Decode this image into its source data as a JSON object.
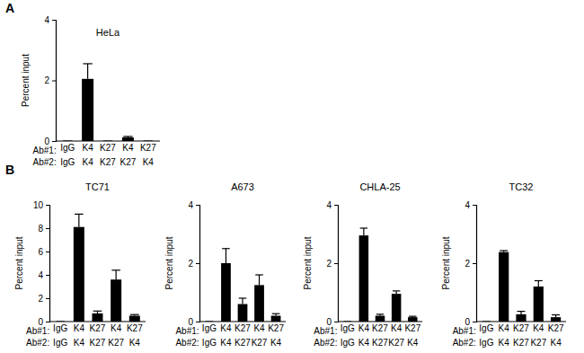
{
  "chart_data": [
    {
      "type": "bar",
      "panel_label": "A",
      "title": "HeLa",
      "y_label": "Percent input",
      "category_row_labels": [
        "Ab#1:",
        "Ab#2:"
      ],
      "categories": [
        "IgG",
        "K4",
        "K27",
        "K4",
        "K27"
      ],
      "categories_2": [
        "IgG",
        "K4",
        "K27",
        "K27",
        "K4"
      ],
      "values": [
        0,
        2.05,
        0,
        0.12,
        0
      ],
      "errors": [
        0,
        0.5,
        0,
        0.03,
        0
      ],
      "color": "#000000",
      "ylim": [
        0,
        4
      ],
      "yticks": [
        0,
        2,
        4
      ]
    },
    {
      "type": "bar",
      "panel_label": "B",
      "title": "TC71",
      "y_label": "Percent input",
      "category_row_labels": [
        "Ab#1:",
        "Ab#2:"
      ],
      "categories": [
        "IgG",
        "K4",
        "K27",
        "K4",
        "K27"
      ],
      "categories_2": [
        "IgG",
        "K4",
        "K27",
        "K27",
        "K4"
      ],
      "values": [
        0,
        8.1,
        0.7,
        3.6,
        0.5
      ],
      "errors": [
        0,
        1.1,
        0.2,
        0.8,
        0.1
      ],
      "color": "#000000",
      "ylim": [
        0,
        10
      ],
      "yticks": [
        0,
        2,
        4,
        6,
        8,
        10
      ]
    },
    {
      "type": "bar",
      "title": "A673",
      "y_label": "Percent input",
      "category_row_labels": [
        "Ab#1:",
        "Ab#2:"
      ],
      "categories": [
        "IgG",
        "K4",
        "K27",
        "K4",
        "K27"
      ],
      "categories_2": [
        "IgG",
        "K4",
        "K27",
        "K27",
        "K4"
      ],
      "values": [
        0,
        2.0,
        0.6,
        1.25,
        0.2
      ],
      "errors": [
        0,
        0.5,
        0.2,
        0.35,
        0.07
      ],
      "color": "#000000",
      "ylim": [
        0,
        4
      ],
      "yticks": [
        0,
        2,
        4
      ]
    },
    {
      "type": "bar",
      "title": "CHLA-25",
      "y_label": "Percent input",
      "category_row_labels": [
        "Ab#1:",
        "Ab#2:"
      ],
      "categories": [
        "IgG",
        "K4",
        "K27",
        "K4",
        "K27"
      ],
      "categories_2": [
        "IgG",
        "K4",
        "K27",
        "K27",
        "K4"
      ],
      "values": [
        0,
        2.95,
        0.2,
        0.95,
        0.15
      ],
      "errors": [
        0,
        0.25,
        0.05,
        0.1,
        0.03
      ],
      "color": "#000000",
      "ylim": [
        0,
        4
      ],
      "yticks": [
        0,
        2,
        4
      ]
    },
    {
      "type": "bar",
      "title": "TC32",
      "y_label": "Percent input",
      "category_row_labels": [
        "Ab#1:",
        "Ab#2:"
      ],
      "categories": [
        "IgG",
        "K4",
        "K27",
        "K4",
        "K27"
      ],
      "categories_2": [
        "IgG",
        "K4",
        "K27",
        "K27",
        "K4"
      ],
      "values": [
        0,
        2.38,
        0.25,
        1.2,
        0.15
      ],
      "errors": [
        0,
        0.05,
        0.1,
        0.2,
        0.08
      ],
      "color": "#000000",
      "ylim": [
        0,
        4
      ],
      "yticks": [
        0,
        2,
        4
      ]
    }
  ]
}
